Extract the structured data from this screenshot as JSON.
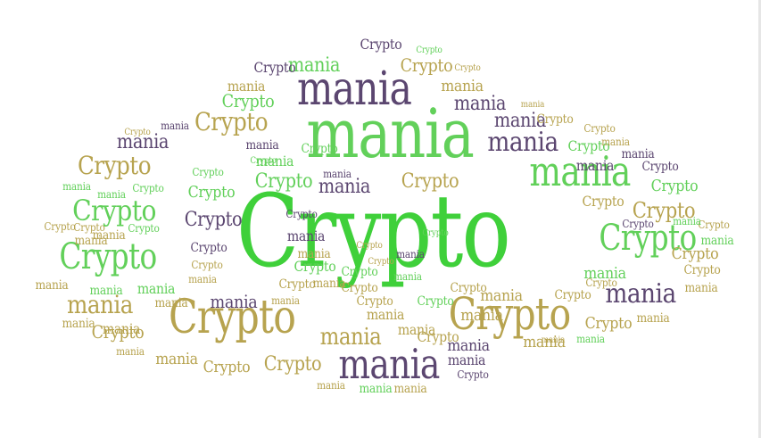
{
  "word_a": "Crypto",
  "word_b": "mania",
  "colors": {
    "green_bright": "#3fd03a",
    "green_light": "#62d05a",
    "purple": "#5b4670",
    "olive": "#b7a34f"
  }
}
